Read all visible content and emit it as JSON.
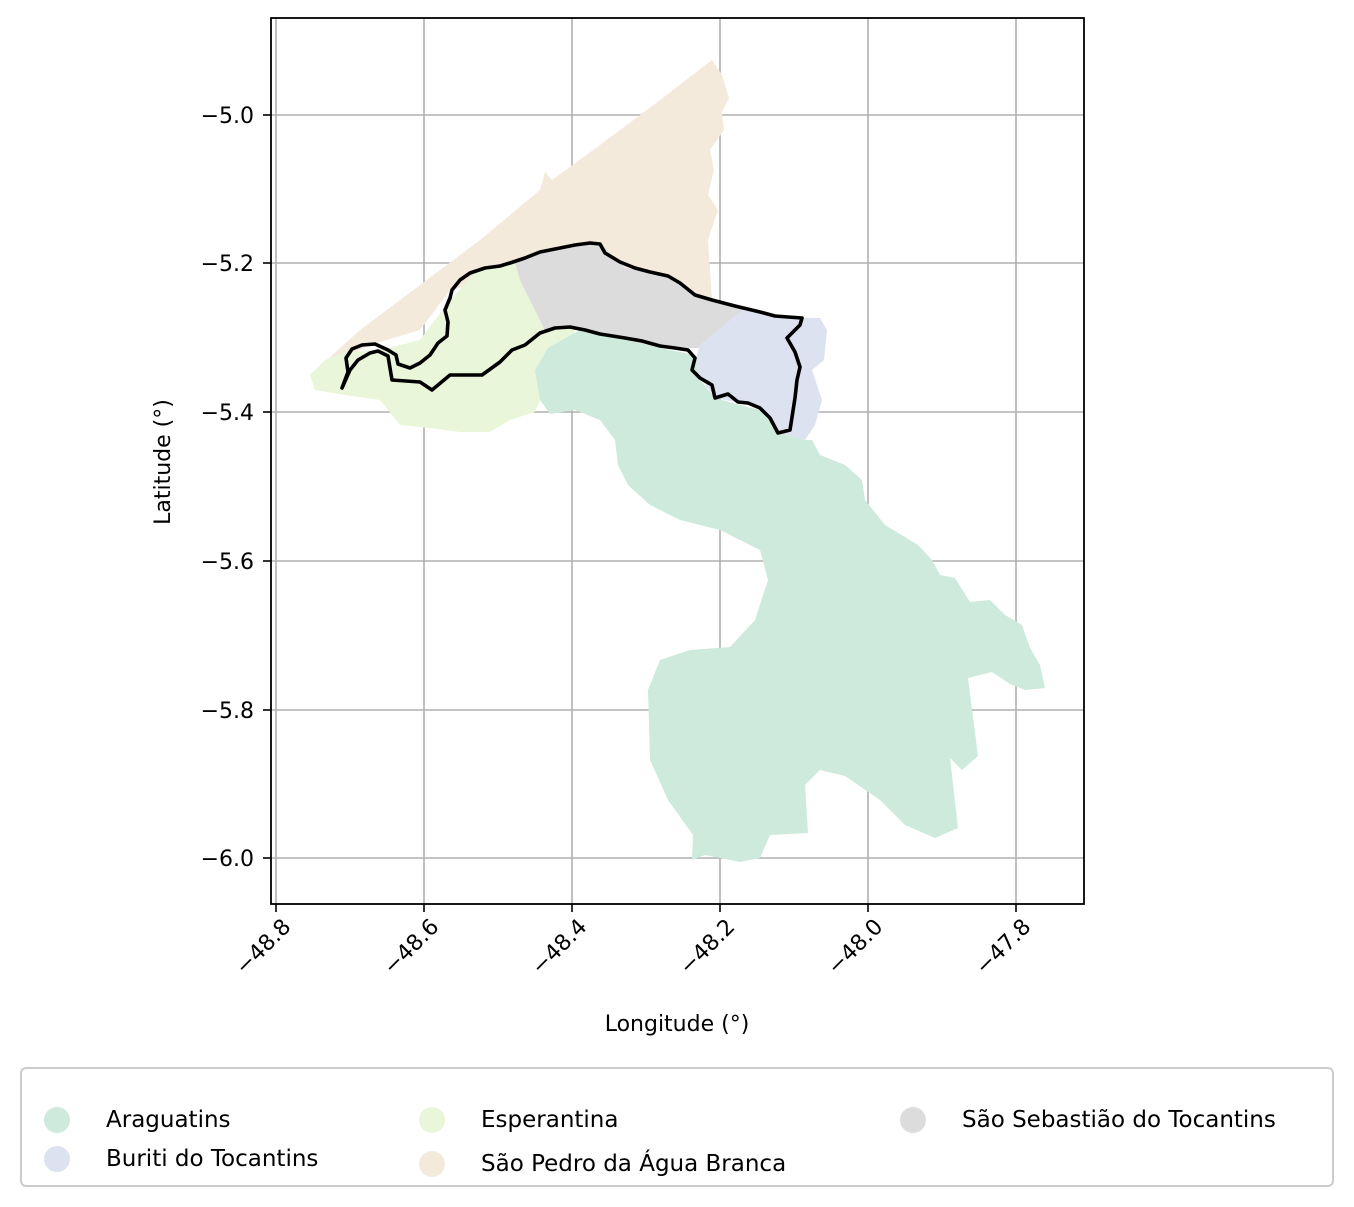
{
  "chart": {
    "xlabel": "Longitude (°)",
    "ylabel": "Latitude (°)",
    "xlim": [
      -48.805,
      -47.71
    ],
    "ylim": [
      -6.063,
      -4.868
    ],
    "x_ticks": [
      -48.8,
      -48.6,
      -48.4,
      -48.2,
      -48.0,
      -47.8
    ],
    "x_tick_labels": [
      "−48.8",
      "−48.6",
      "−48.4",
      "−48.2",
      "−48.0",
      "−47.8"
    ],
    "y_ticks": [
      -5.0,
      -5.2,
      -5.4,
      -5.6,
      -5.8,
      -6.0
    ],
    "y_tick_labels": [
      "−5.0",
      "−5.2",
      "−5.4",
      "−5.6",
      "−5.8",
      "−6.0"
    ],
    "grid": true
  },
  "municipalities": [
    {
      "name": "Araguatins",
      "color": "#cdeadc"
    },
    {
      "name": "Buriti do Tocantins",
      "color": "#dde2f0"
    },
    {
      "name": "Esperantina",
      "color": "#eaf6da"
    },
    {
      "name": "São Pedro da Água Branca",
      "color": "#f4eadc"
    },
    {
      "name": "São Sebastião do Tocantins",
      "color": "#dcdcdc"
    }
  ],
  "legend": {
    "items": [
      {
        "label": "Araguatins",
        "color": "#cdeadc"
      },
      {
        "label": "Buriti do Tocantins",
        "color": "#dde2f0"
      },
      {
        "label": "Esperantina",
        "color": "#eaf6da"
      },
      {
        "label": "São Pedro da Água Branca",
        "color": "#f4eadc"
      },
      {
        "label": "São Sebastião do Tocantins",
        "color": "#dcdcdc"
      }
    ]
  },
  "highlight_outline_color": "#000000"
}
